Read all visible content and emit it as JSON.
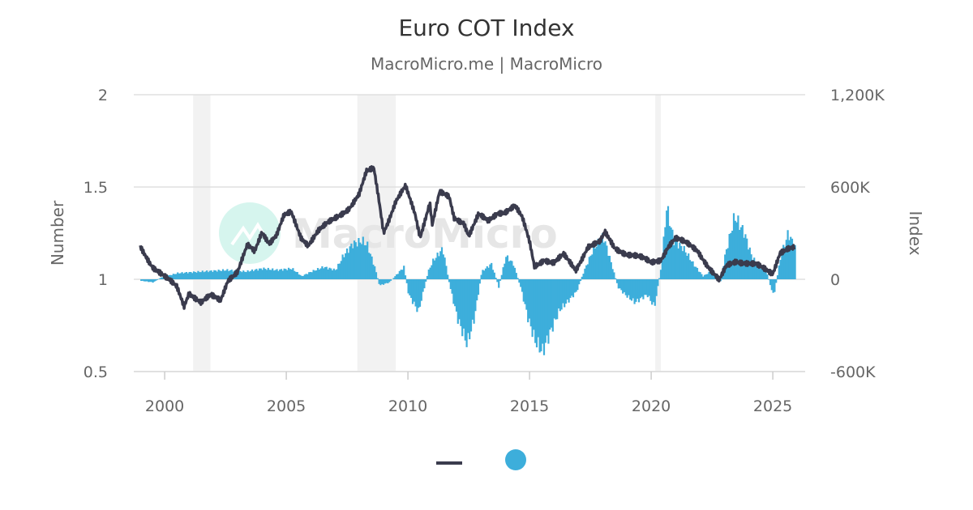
{
  "chart_data": {
    "type": "line+bar",
    "title": "Euro COT Index",
    "subtitle": "MacroMicro.me | MacroMicro",
    "watermark": "MacroMicro",
    "ylabel_left": "Number",
    "ylabel_right": "Index",
    "xlim": [
      1998.73,
      2026.33
    ],
    "ylim_left": [
      0.5,
      2
    ],
    "ylim_right": [
      -600000,
      1200000
    ],
    "x_ticks": [
      "2000",
      "2005",
      "2010",
      "2015",
      "2020",
      "2025"
    ],
    "x_tick_values": [
      2000,
      2005,
      2010,
      2015,
      2020,
      2025
    ],
    "y_left_ticks": [
      "0.5",
      "1",
      "1.5",
      "2"
    ],
    "y_left_tick_values": [
      0.5,
      1,
      1.5,
      2
    ],
    "y_right_ticks": [
      "-600K",
      "0",
      "600K",
      "1,200K"
    ],
    "y_right_tick_values": [
      -600000,
      0,
      600000,
      1200000
    ],
    "grid": true,
    "legend": "bottom-center",
    "colors": {
      "line": "#3a3b4d",
      "bars": "#3daedb",
      "shade": "#f2f2f2",
      "grid": "#e0e0e0"
    },
    "shaded_periods": [
      [
        2001.17,
        2001.88
      ],
      [
        2007.92,
        2009.5
      ],
      [
        2020.17,
        2020.4
      ]
    ],
    "line_series": {
      "axis": "left",
      "x": [
        1999.0,
        1999.5,
        2000.0,
        2000.5,
        2000.8,
        2001.0,
        2001.5,
        2001.9,
        2002.3,
        2002.6,
        2003.0,
        2003.4,
        2003.7,
        2004.0,
        2004.3,
        2004.6,
        2004.9,
        2005.2,
        2005.6,
        2005.9,
        2006.3,
        2006.8,
        2007.2,
        2007.6,
        2008.0,
        2008.3,
        2008.6,
        2008.8,
        2009.0,
        2009.2,
        2009.5,
        2009.9,
        2010.3,
        2010.5,
        2010.9,
        2011.0,
        2011.3,
        2011.7,
        2011.9,
        2012.3,
        2012.5,
        2012.9,
        2013.3,
        2013.7,
        2014.0,
        2014.4,
        2014.7,
        2015.0,
        2015.2,
        2015.6,
        2016.0,
        2016.4,
        2016.9,
        2017.4,
        2017.9,
        2018.1,
        2018.5,
        2019.0,
        2019.5,
        2020.0,
        2020.4,
        2020.7,
        2021.0,
        2021.5,
        2021.9,
        2022.4,
        2022.8,
        2023.1,
        2023.5,
        2024.0,
        2024.3,
        2024.8,
        2025.0,
        2025.3,
        2025.6,
        2025.9
      ],
      "values": [
        1.18,
        1.07,
        1.01,
        0.96,
        0.86,
        0.93,
        0.87,
        0.91,
        0.89,
        1.0,
        1.04,
        1.18,
        1.15,
        1.26,
        1.2,
        1.24,
        1.34,
        1.36,
        1.23,
        1.19,
        1.26,
        1.31,
        1.35,
        1.39,
        1.46,
        1.58,
        1.6,
        1.44,
        1.26,
        1.32,
        1.42,
        1.5,
        1.35,
        1.23,
        1.42,
        1.3,
        1.47,
        1.44,
        1.33,
        1.31,
        1.24,
        1.35,
        1.31,
        1.36,
        1.37,
        1.4,
        1.33,
        1.2,
        1.07,
        1.11,
        1.09,
        1.13,
        1.05,
        1.18,
        1.2,
        1.25,
        1.17,
        1.14,
        1.12,
        1.09,
        1.11,
        1.18,
        1.22,
        1.19,
        1.16,
        1.06,
        0.99,
        1.07,
        1.1,
        1.09,
        1.08,
        1.04,
        1.03,
        1.15,
        1.17,
        1.17
      ]
    },
    "bar_series": {
      "axis": "right",
      "x": [
        1999.0,
        1999.5,
        1999.8,
        2000.5,
        2001.5,
        2002.5,
        2003.3,
        2004.0,
        2004.6,
        2005.2,
        2005.6,
        2006.0,
        2006.5,
        2007.0,
        2007.3,
        2007.7,
        2008.1,
        2008.3,
        2008.6,
        2008.8,
        2009.2,
        2009.8,
        2010.0,
        2010.4,
        2010.8,
        2011.0,
        2011.4,
        2011.7,
        2012.0,
        2012.4,
        2012.7,
        2013.0,
        2013.4,
        2013.7,
        2014.0,
        2014.3,
        2014.6,
        2014.9,
        2015.2,
        2015.5,
        2015.8,
        2016.2,
        2016.5,
        2016.9,
        2017.2,
        2017.6,
        2018.0,
        2018.3,
        2018.6,
        2018.9,
        2019.3,
        2019.8,
        2020.1,
        2020.4,
        2020.6,
        2020.9,
        2021.3,
        2021.7,
        2022.1,
        2022.5,
        2022.8,
        2023.0,
        2023.4,
        2023.8,
        2024.1,
        2024.4,
        2024.7,
        2025.0,
        2025.3,
        2025.6,
        2025.9
      ],
      "values": [
        -10000,
        -20000,
        10000,
        40000,
        50000,
        60000,
        50000,
        70000,
        60000,
        70000,
        20000,
        50000,
        80000,
        60000,
        150000,
        230000,
        250000,
        220000,
        80000,
        -40000,
        -20000,
        80000,
        -100000,
        -210000,
        50000,
        120000,
        200000,
        -50000,
        -250000,
        -420000,
        -250000,
        50000,
        100000,
        -50000,
        150000,
        100000,
        -50000,
        -250000,
        -400000,
        -470000,
        -350000,
        -200000,
        -150000,
        -80000,
        50000,
        200000,
        280000,
        120000,
        -50000,
        -100000,
        -150000,
        -100000,
        -180000,
        100000,
        470000,
        250000,
        200000,
        100000,
        20000,
        60000,
        -30000,
        150000,
        410000,
        300000,
        150000,
        80000,
        50000,
        -110000,
        150000,
        300000,
        200000
      ]
    }
  }
}
